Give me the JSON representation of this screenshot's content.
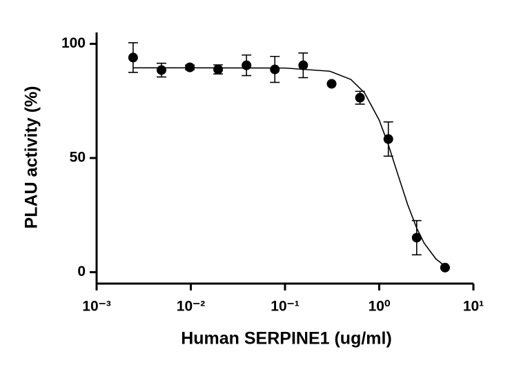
{
  "chart_data": {
    "type": "scatter",
    "x_label": "Human SERPINE1 (ug/ml)",
    "y_label": "PLAU activity (%)",
    "x_scale": "log",
    "xlim": [
      0.001,
      10
    ],
    "xticks": [
      {
        "value": 0.001,
        "label": "10⁻³"
      },
      {
        "value": 0.01,
        "label": "10⁻²"
      },
      {
        "value": 0.1,
        "label": "10⁻¹"
      },
      {
        "value": 1,
        "label": "10⁰"
      },
      {
        "value": 10,
        "label": "10¹"
      }
    ],
    "ylim": [
      -5,
      105
    ],
    "yticks": [
      0,
      50,
      100
    ],
    "series": [
      {
        "color": "#000000",
        "x": [
          0.00244,
          0.00488,
          0.00977,
          0.0195,
          0.039,
          0.078,
          0.156,
          0.3125,
          0.625,
          1.25,
          2.5,
          5
        ],
        "values": [
          94,
          88.5,
          89.7,
          88.8,
          90.6,
          88.8,
          90.6,
          82.5,
          76.4,
          58.3,
          15.1,
          2
        ],
        "errors": [
          6.5,
          3,
          1,
          2,
          4.5,
          5.7,
          5.4,
          0,
          2.8,
          7.5,
          7.5,
          0
        ]
      }
    ],
    "fit": {
      "color": "#000000",
      "x": [
        0.00244,
        0.01,
        0.1,
        0.3,
        0.5,
        0.7,
        1,
        1.25,
        1.5,
        2,
        2.5,
        3,
        4,
        5
      ],
      "values": [
        89.5,
        89.5,
        89.4,
        88,
        84.4,
        78.5,
        66.6,
        55.8,
        45.6,
        29.7,
        19.3,
        12.7,
        5.8,
        2.6
      ]
    }
  }
}
